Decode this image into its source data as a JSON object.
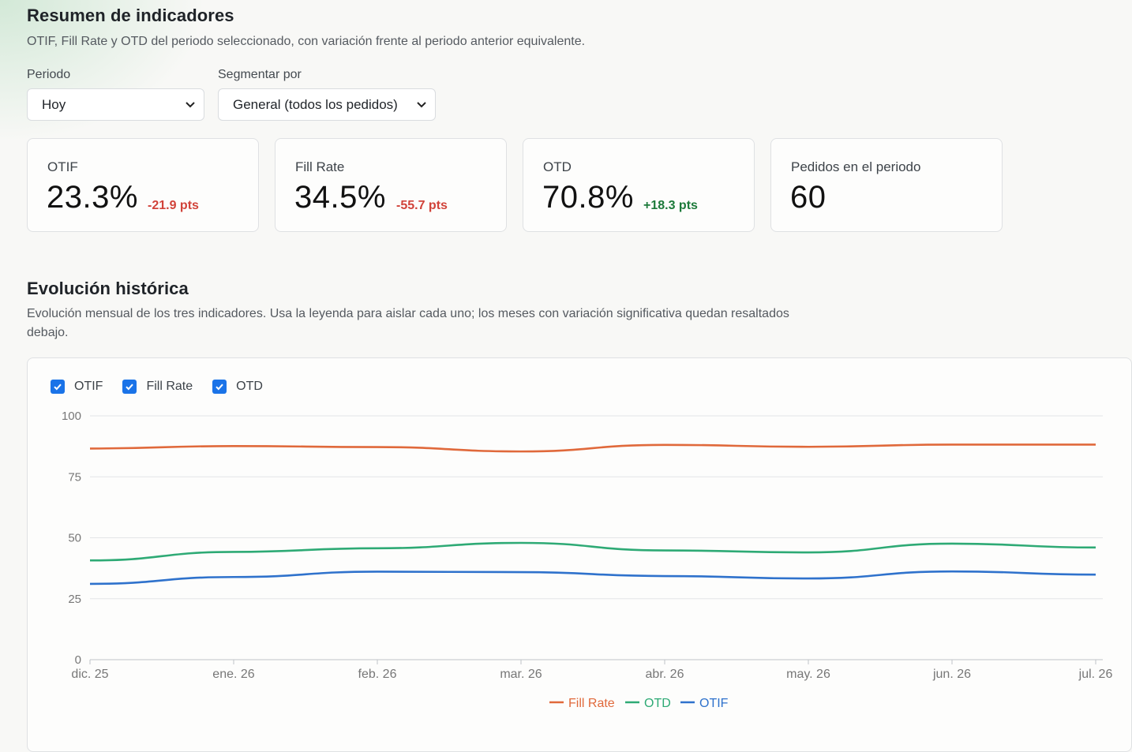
{
  "summary": {
    "title": "Resumen de indicadores",
    "description": "OTIF, Fill Rate y OTD del periodo seleccionado, con variación frente al periodo anterior equivalente."
  },
  "filters": {
    "period": {
      "label": "Periodo",
      "value": "Hoy"
    },
    "segment": {
      "label": "Segmentar por",
      "value": "General (todos los pedidos)"
    }
  },
  "kpis": [
    {
      "label": "OTIF",
      "value": "23.3%",
      "delta": "-21.9 pts",
      "trend": "negative"
    },
    {
      "label": "Fill Rate",
      "value": "34.5%",
      "delta": "-55.7 pts",
      "trend": "negative"
    },
    {
      "label": "OTD",
      "value": "70.8%",
      "delta": "+18.3 pts",
      "trend": "positive"
    },
    {
      "label": "Pedidos en el periodo",
      "value": "60",
      "delta": "",
      "trend": "none"
    }
  ],
  "history": {
    "title": "Evolución histórica",
    "description": "Evolución mensual de los tres indicadores. Usa la leyenda para aislar cada uno; los meses con variación significativa quedan resaltados debajo."
  },
  "toggles": [
    {
      "label": "OTIF",
      "checked": true
    },
    {
      "label": "Fill Rate",
      "checked": true
    },
    {
      "label": "OTD",
      "checked": true
    }
  ],
  "colors": {
    "fill_rate": "#e0693b",
    "otd": "#2eaa75",
    "otif": "#2f72cc",
    "positive": "#1c7a3a",
    "negative": "#d1433a",
    "checkbox": "#1a73e8"
  },
  "chart_data": {
    "type": "line",
    "categories": [
      "dic. 25",
      "ene. 26",
      "feb. 26",
      "mar. 26",
      "abr. 26",
      "may. 26",
      "jun. 26",
      "jul. 26"
    ],
    "ylim": [
      0,
      100
    ],
    "yticks": [
      0,
      25,
      50,
      75,
      100
    ],
    "grid": true,
    "legend_position": "bottom",
    "series": [
      {
        "name": "Fill Rate",
        "color": "#e0693b",
        "values": [
          86.6,
          87.6,
          87.2,
          85.4,
          88.1,
          87.3,
          88.2,
          88.2
        ]
      },
      {
        "name": "OTD",
        "color": "#2eaa75",
        "values": [
          40.7,
          44.2,
          45.7,
          47.9,
          44.8,
          44.0,
          47.6,
          46.0
        ]
      },
      {
        "name": "OTIF",
        "color": "#2f72cc",
        "values": [
          31.1,
          33.9,
          36.1,
          35.9,
          34.3,
          33.3,
          36.2,
          34.9
        ]
      }
    ]
  }
}
